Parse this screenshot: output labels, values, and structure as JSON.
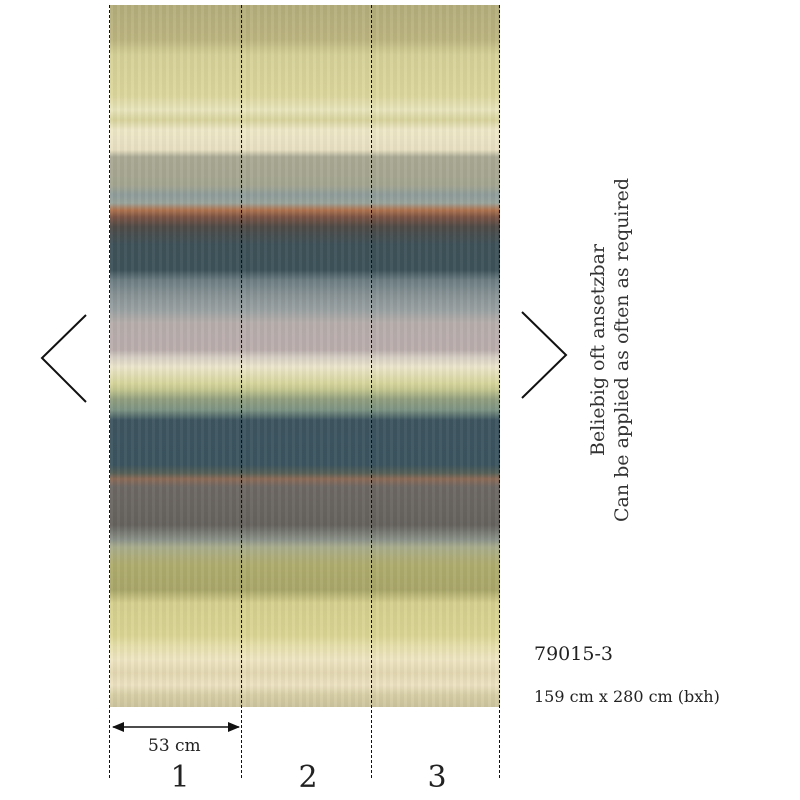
{
  "product": {
    "code": "79015-3",
    "dimensions": "159 cm x 280 cm (bxh)",
    "repeat_note_de": "Beliebig oft ansetzbar",
    "repeat_note_en": "Can be applied as often as required"
  },
  "panels": {
    "width_label": "53 cm",
    "numbers": [
      "1",
      "2",
      "3"
    ]
  },
  "navigation": {
    "prev_icon": "chevron-left-icon",
    "next_icon": "chevron-right-icon"
  }
}
